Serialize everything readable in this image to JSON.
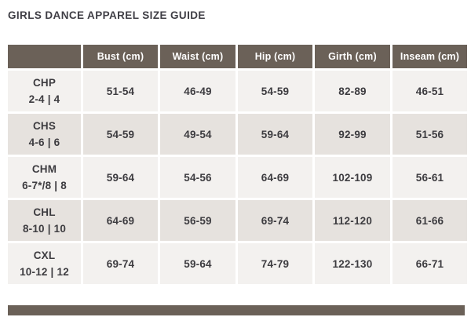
{
  "title": "GIRLS DANCE APPAREL SIZE GUIDE",
  "colors": {
    "page_bg": "#ffffff",
    "header_bg": "#6b6158",
    "header_text": "#ffffff",
    "row_light": "#f3f1ef",
    "row_dark": "#e6e2de",
    "cell_text": "#3d3c40",
    "title_text": "#3f3e45"
  },
  "table": {
    "columns": [
      "",
      "Bust (cm)",
      "Waist (cm)",
      "Hip (cm)",
      "Girth (cm)",
      "Inseam (cm)"
    ],
    "rows": [
      {
        "size_code": "CHP",
        "size_range": "2-4 | 4",
        "bust": "51-54",
        "waist": "46-49",
        "hip": "54-59",
        "girth": "82-89",
        "inseam": "46-51"
      },
      {
        "size_code": "CHS",
        "size_range": "4-6 | 6",
        "bust": "54-59",
        "waist": "49-54",
        "hip": "59-64",
        "girth": "92-99",
        "inseam": "51-56"
      },
      {
        "size_code": "CHM",
        "size_range": "6-7*/8 | 8",
        "bust": "59-64",
        "waist": "54-56",
        "hip": "64-69",
        "girth": "102-109",
        "inseam": "56-61"
      },
      {
        "size_code": "CHL",
        "size_range": "8-10 | 10",
        "bust": "64-69",
        "waist": "56-59",
        "hip": "69-74",
        "girth": "112-120",
        "inseam": "61-66"
      },
      {
        "size_code": "CXL",
        "size_range": "10-12 | 12",
        "bust": "69-74",
        "waist": "59-64",
        "hip": "74-79",
        "girth": "122-130",
        "inseam": "66-71"
      }
    ]
  },
  "partial_next_table_header": {
    "visible": true,
    "label": ""
  }
}
